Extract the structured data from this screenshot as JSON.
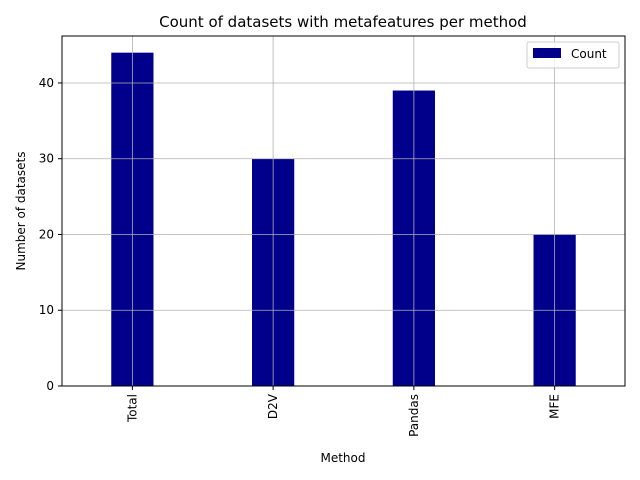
{
  "chart_data": {
    "type": "bar",
    "title": "Count of datasets with metafeatures per method",
    "xlabel": "Method",
    "ylabel": "Number of datasets",
    "categories": [
      "Total",
      "D2V",
      "Pandas",
      "MFE"
    ],
    "series": [
      {
        "name": "Count",
        "values": [
          44,
          30,
          39,
          20
        ],
        "color": "#00008b"
      }
    ],
    "ylim": [
      0,
      46.2
    ],
    "yticks": [
      0,
      10,
      20,
      30,
      40
    ],
    "grid": true,
    "legend_position": "top-right"
  }
}
